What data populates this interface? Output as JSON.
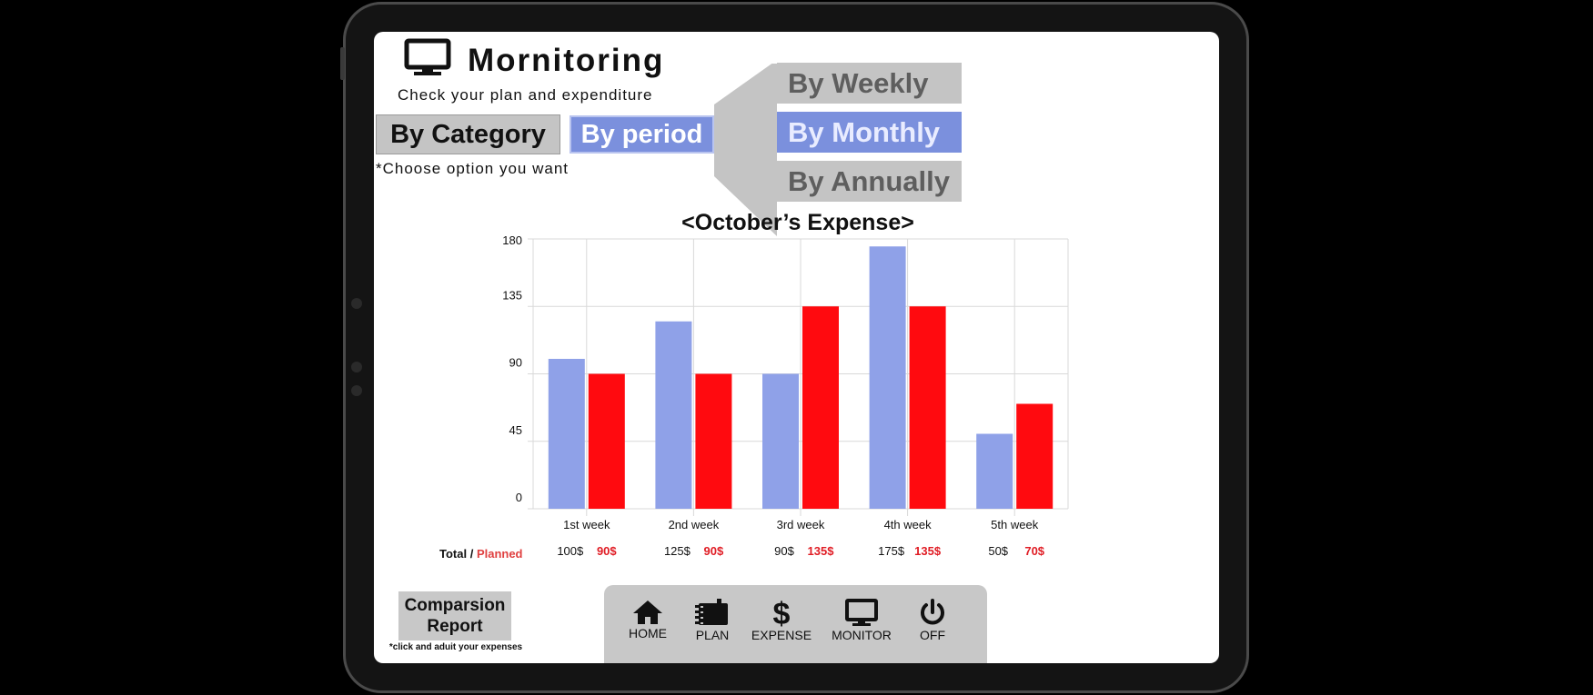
{
  "header": {
    "title": "Mornitoring",
    "subtitle": "Check your plan and expenditure",
    "monitor_icon": "monitor-icon"
  },
  "filters": {
    "by_category": "By Category",
    "by_period": "By period",
    "hint": "*Choose option you want",
    "period_options": [
      "By Weekly",
      "By Monthly",
      "By Annually"
    ],
    "selected_period": "By Monthly"
  },
  "colors": {
    "total": "#8fa1e8",
    "planned": "#ff0a0f",
    "accent": "#7b90dd"
  },
  "chart_data": {
    "type": "bar",
    "title": "<October’s Expense>",
    "categories": [
      "1st week",
      "2nd week",
      "3rd week",
      "4th week",
      "5th week"
    ],
    "series": [
      {
        "name": "Total",
        "values": [
          100,
          125,
          90,
          175,
          50
        ]
      },
      {
        "name": "Planned",
        "values": [
          90,
          90,
          135,
          135,
          70
        ]
      }
    ],
    "ylim": [
      0,
      180
    ],
    "yticks": [
      0,
      45,
      90,
      135,
      180
    ],
    "grid": true,
    "row_label_total": "Total",
    "row_label_sep": "/",
    "row_label_planned": "Planned",
    "total_labels": [
      "100$",
      "125$",
      "90$",
      "175$",
      "50$"
    ],
    "planned_labels": [
      "90$",
      "90$",
      "135$",
      "135$",
      "70$"
    ]
  },
  "report": {
    "label_line1": "Comparsion",
    "label_line2": "Report",
    "note": "*click and aduit your expenses"
  },
  "nav": {
    "items": [
      {
        "label": "HOME",
        "icon": "home-icon"
      },
      {
        "label": "PLAN",
        "icon": "notebook-icon"
      },
      {
        "label": "EXPENSE",
        "icon": "dollar-icon"
      },
      {
        "label": "MONITOR",
        "icon": "monitor-icon"
      },
      {
        "label": "OFF",
        "icon": "power-icon"
      }
    ]
  }
}
